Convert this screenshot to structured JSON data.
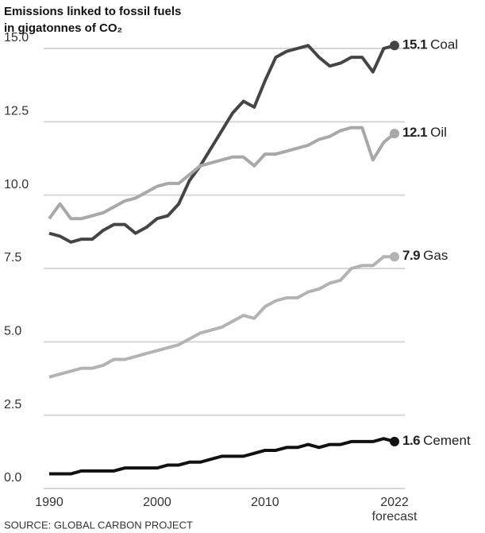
{
  "chart_data": {
    "type": "line",
    "title": "Emissions linked to fossil fuels",
    "subtitle": "in gigatonnes of CO₂",
    "source": "SOURCE: GLOBAL CARBON PROJECT",
    "x_annotation": "forecast",
    "x": [
      1990,
      1991,
      1992,
      1993,
      1994,
      1995,
      1996,
      1997,
      1998,
      1999,
      2000,
      2001,
      2002,
      2003,
      2004,
      2005,
      2006,
      2007,
      2008,
      2009,
      2010,
      2011,
      2012,
      2013,
      2014,
      2015,
      2016,
      2017,
      2018,
      2019,
      2020,
      2021,
      2022
    ],
    "xlim": [
      1989.5,
      2023.5
    ],
    "xticks": [
      1990,
      2000,
      2010,
      2022
    ],
    "ylim": [
      0,
      15.5
    ],
    "yticks": [
      {
        "value": 0,
        "label": "0.0"
      },
      {
        "value": 2.5,
        "label": "2.5"
      },
      {
        "value": 5,
        "label": "5.0"
      },
      {
        "value": 7.5,
        "label": "7.5"
      },
      {
        "value": 10,
        "label": "10.0"
      },
      {
        "value": 12.5,
        "label": "12.5"
      },
      {
        "value": 15,
        "label": "15.0"
      }
    ],
    "grid": true,
    "series": [
      {
        "name": "Coal",
        "color": "#454545",
        "values": [
          8.7,
          8.6,
          8.4,
          8.5,
          8.5,
          8.8,
          9.0,
          9.0,
          8.7,
          8.9,
          9.2,
          9.3,
          9.7,
          10.5,
          11.0,
          11.6,
          12.2,
          12.8,
          13.2,
          13.0,
          13.9,
          14.7,
          14.9,
          15.0,
          15.1,
          14.7,
          14.4,
          14.5,
          14.7,
          14.7,
          14.2,
          15.0,
          15.1
        ]
      },
      {
        "name": "Oil",
        "color": "#a8a8a8",
        "values": [
          9.2,
          9.7,
          9.2,
          9.2,
          9.3,
          9.4,
          9.6,
          9.8,
          9.9,
          10.1,
          10.3,
          10.4,
          10.4,
          10.7,
          11.0,
          11.1,
          11.2,
          11.3,
          11.3,
          11.0,
          11.4,
          11.4,
          11.5,
          11.6,
          11.7,
          11.9,
          12.0,
          12.2,
          12.3,
          12.3,
          11.2,
          11.8,
          12.1
        ]
      },
      {
        "name": "Gas",
        "color": "#b3b3b3",
        "values": [
          3.8,
          3.9,
          4.0,
          4.1,
          4.1,
          4.2,
          4.4,
          4.4,
          4.5,
          4.6,
          4.7,
          4.8,
          4.9,
          5.1,
          5.3,
          5.4,
          5.5,
          5.7,
          5.9,
          5.8,
          6.2,
          6.4,
          6.5,
          6.5,
          6.7,
          6.8,
          7.0,
          7.1,
          7.5,
          7.6,
          7.6,
          7.9,
          7.9
        ]
      },
      {
        "name": "Cement",
        "color": "#111111",
        "values": [
          0.5,
          0.5,
          0.5,
          0.6,
          0.6,
          0.6,
          0.6,
          0.7,
          0.7,
          0.7,
          0.7,
          0.8,
          0.8,
          0.9,
          0.9,
          1.0,
          1.1,
          1.1,
          1.1,
          1.2,
          1.3,
          1.3,
          1.4,
          1.4,
          1.5,
          1.4,
          1.5,
          1.5,
          1.6,
          1.6,
          1.6,
          1.7,
          1.6
        ]
      }
    ]
  }
}
